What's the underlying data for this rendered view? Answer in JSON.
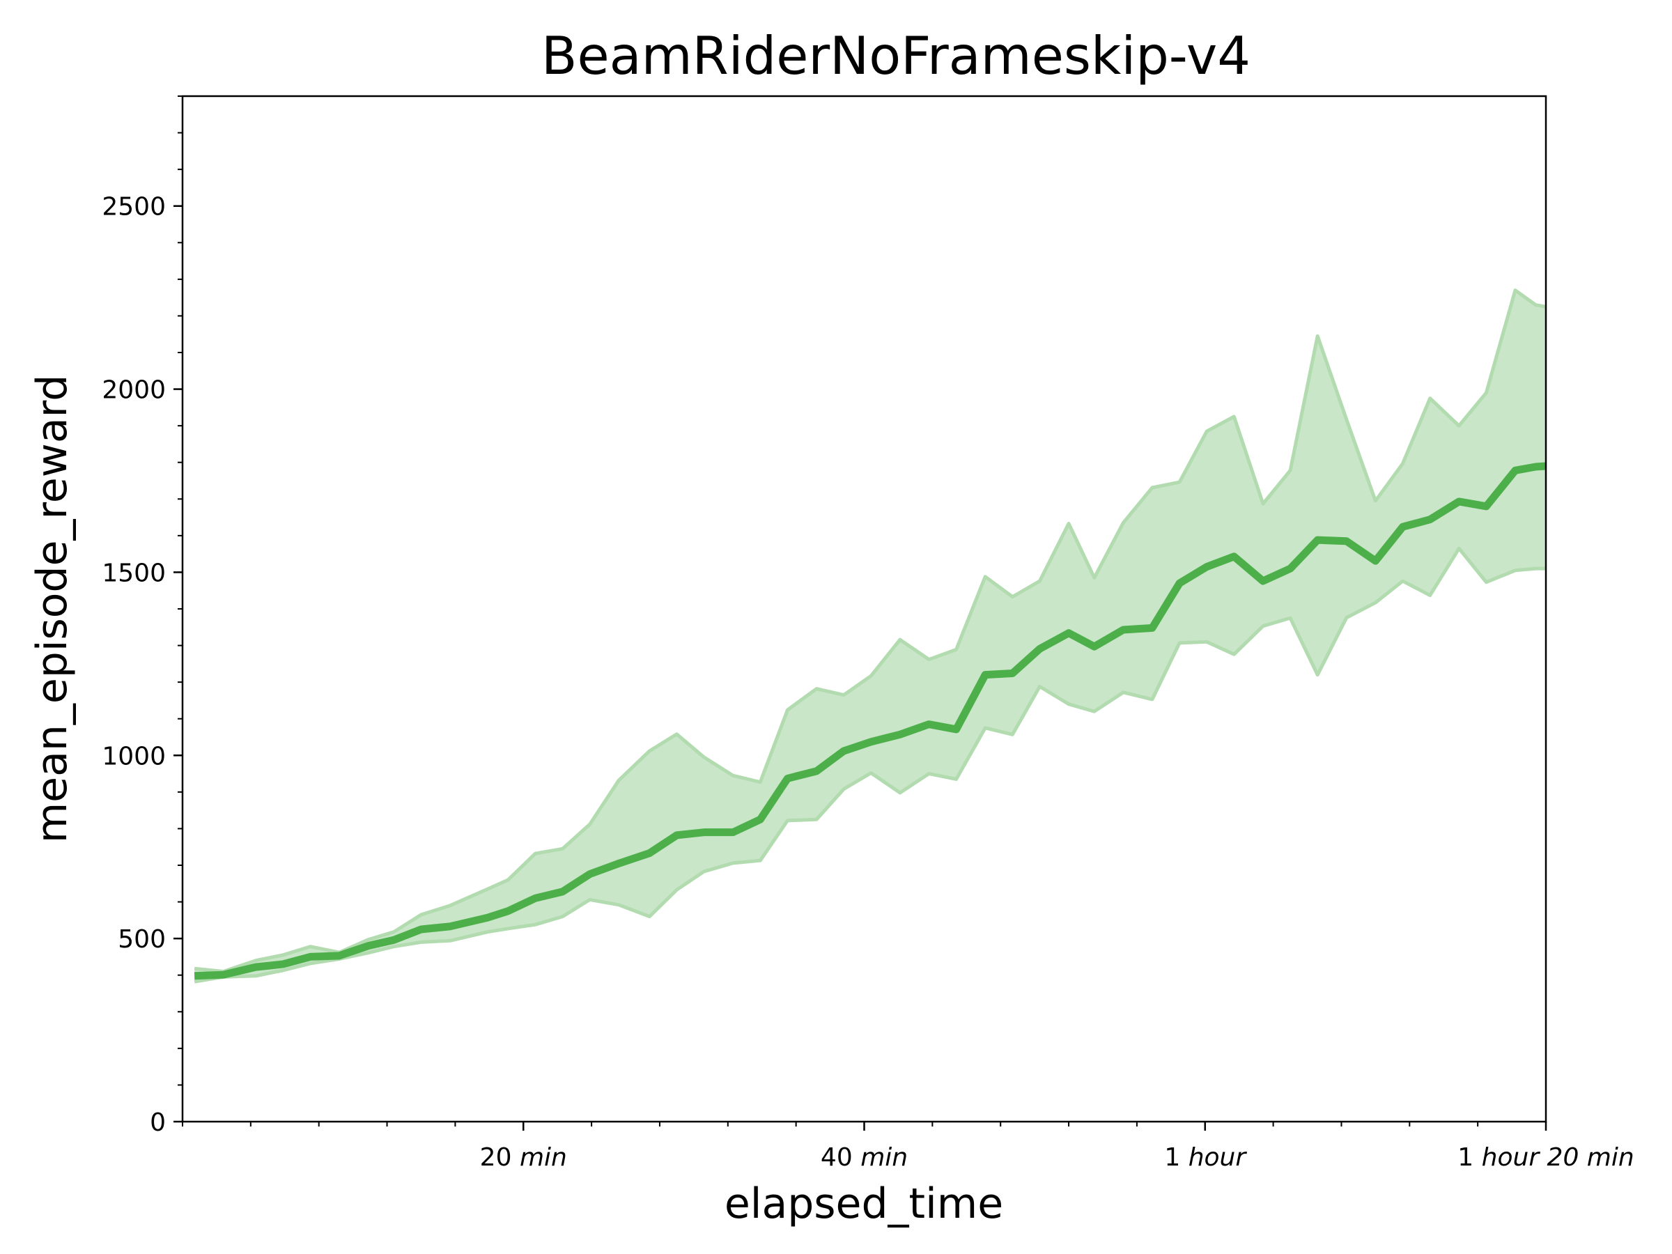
{
  "chart_data": {
    "type": "line",
    "title": "BeamRiderNoFrameskip-v4",
    "xlabel": "elapsed_time",
    "ylabel": "mean_episode_reward",
    "x_unit": "minutes",
    "xlim": [
      0,
      80
    ],
    "ylim": [
      0,
      2800
    ],
    "x_ticks": [
      {
        "value": 20,
        "num": "20",
        "unit": "min"
      },
      {
        "value": 40,
        "num": "40",
        "unit": "min"
      },
      {
        "value": 60,
        "num": "1",
        "unit": "hour"
      },
      {
        "value": 80,
        "num": "1",
        "unit": "hour 20 min"
      }
    ],
    "y_ticks": [
      {
        "value": 0,
        "label": "0"
      },
      {
        "value": 500,
        "label": "500"
      },
      {
        "value": 1000,
        "label": "1000"
      },
      {
        "value": 1500,
        "label": "1500"
      },
      {
        "value": 2000,
        "label": "2000"
      },
      {
        "value": 2500,
        "label": "2500"
      }
    ],
    "grid": false,
    "legend": "none",
    "colors": {
      "line": "#4daf4a",
      "band_fill": "#c9e6c8",
      "band_edge": "#b2dbb0"
    },
    "series": [
      {
        "x": [
          0.7,
          2.4,
          4.3,
          5.9,
          7.5,
          9.2,
          10.9,
          12.4,
          14.0,
          15.7,
          17.9,
          19.1,
          20.7,
          22.3,
          23.9,
          25.6,
          27.4,
          29.0,
          30.6,
          32.3,
          33.9,
          35.5,
          37.2,
          38.8,
          40.4,
          42.1,
          43.8,
          45.4,
          47.1,
          48.7,
          50.3,
          52.0,
          53.5,
          55.2,
          56.9,
          58.5,
          60.1,
          61.7,
          63.4,
          65.0,
          66.6,
          68.3,
          70.0,
          71.6,
          73.2,
          74.9,
          76.5,
          78.2,
          79.4,
          80.0
        ],
        "mean": [
          398,
          401,
          422,
          430,
          450,
          453,
          480,
          496,
          525,
          533,
          557,
          575,
          610,
          628,
          676,
          705,
          733,
          782,
          790,
          790,
          825,
          937,
          957,
          1012,
          1037,
          1057,
          1085,
          1071,
          1220,
          1224,
          1291,
          1334,
          1297,
          1343,
          1348,
          1470,
          1515,
          1543,
          1476,
          1510,
          1588,
          1585,
          1531,
          1624,
          1644,
          1693,
          1680,
          1778,
          1788,
          1790
        ],
        "upper": [
          418,
          410,
          440,
          455,
          478,
          462,
          497,
          518,
          565,
          590,
          635,
          660,
          732,
          745,
          812,
          932,
          1012,
          1058,
          995,
          945,
          927,
          1124,
          1182,
          1165,
          1217,
          1316,
          1262,
          1289,
          1488,
          1433,
          1476,
          1633,
          1485,
          1635,
          1731,
          1746,
          1885,
          1925,
          1687,
          1778,
          2145,
          1917,
          1695,
          1797,
          1975,
          1900,
          1990,
          2270,
          2230,
          2225
        ],
        "lower": [
          382,
          395,
          398,
          413,
          432,
          444,
          461,
          478,
          490,
          494,
          518,
          527,
          538,
          560,
          606,
          592,
          560,
          633,
          683,
          706,
          713,
          822,
          825,
          908,
          952,
          898,
          950,
          935,
          1075,
          1057,
          1188,
          1140,
          1120,
          1172,
          1153,
          1307,
          1310,
          1276,
          1353,
          1375,
          1220,
          1376,
          1417,
          1476,
          1437,
          1565,
          1473,
          1505,
          1510,
          1510
        ]
      }
    ]
  }
}
